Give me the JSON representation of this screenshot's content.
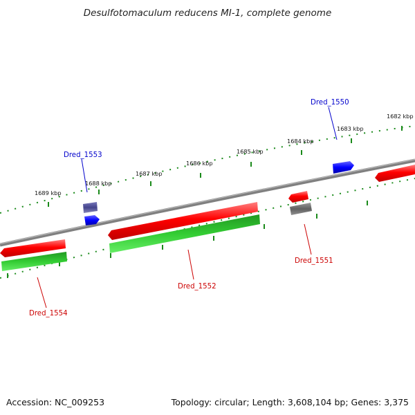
{
  "title": "Desulfotomaculum reducens MI-1, complete genome",
  "footer": {
    "accession": "Accession: NC_009253",
    "summary": "Topology: circular; Length: 3,608,104 bp; Genes: 3,375"
  },
  "ruler_labels": [
    "1689 kbp",
    "1688 kbp",
    "1687 kbp",
    "1686 kbp",
    "1685 kbp",
    "1684 kbp",
    "1683 kbp",
    "1682 kbp"
  ],
  "genes": [
    {
      "id": "Dred_1550",
      "color": "#0000cc"
    },
    {
      "id": "Dred_1551",
      "color": "#cc0000"
    },
    {
      "id": "Dred_1552",
      "color": "#cc0000"
    },
    {
      "id": "Dred_1553",
      "color": "#0000cc"
    },
    {
      "id": "Dred_1554",
      "color": "#cc0000"
    }
  ],
  "colors": {
    "backbone": "#808080",
    "gene_red": "#ff0000",
    "gene_green": "#33cc33",
    "gene_blue": "#0000ff",
    "gene_gray": "#707070",
    "gene_purple": "#4a4a99",
    "ruler": "#1a8a1a"
  }
}
